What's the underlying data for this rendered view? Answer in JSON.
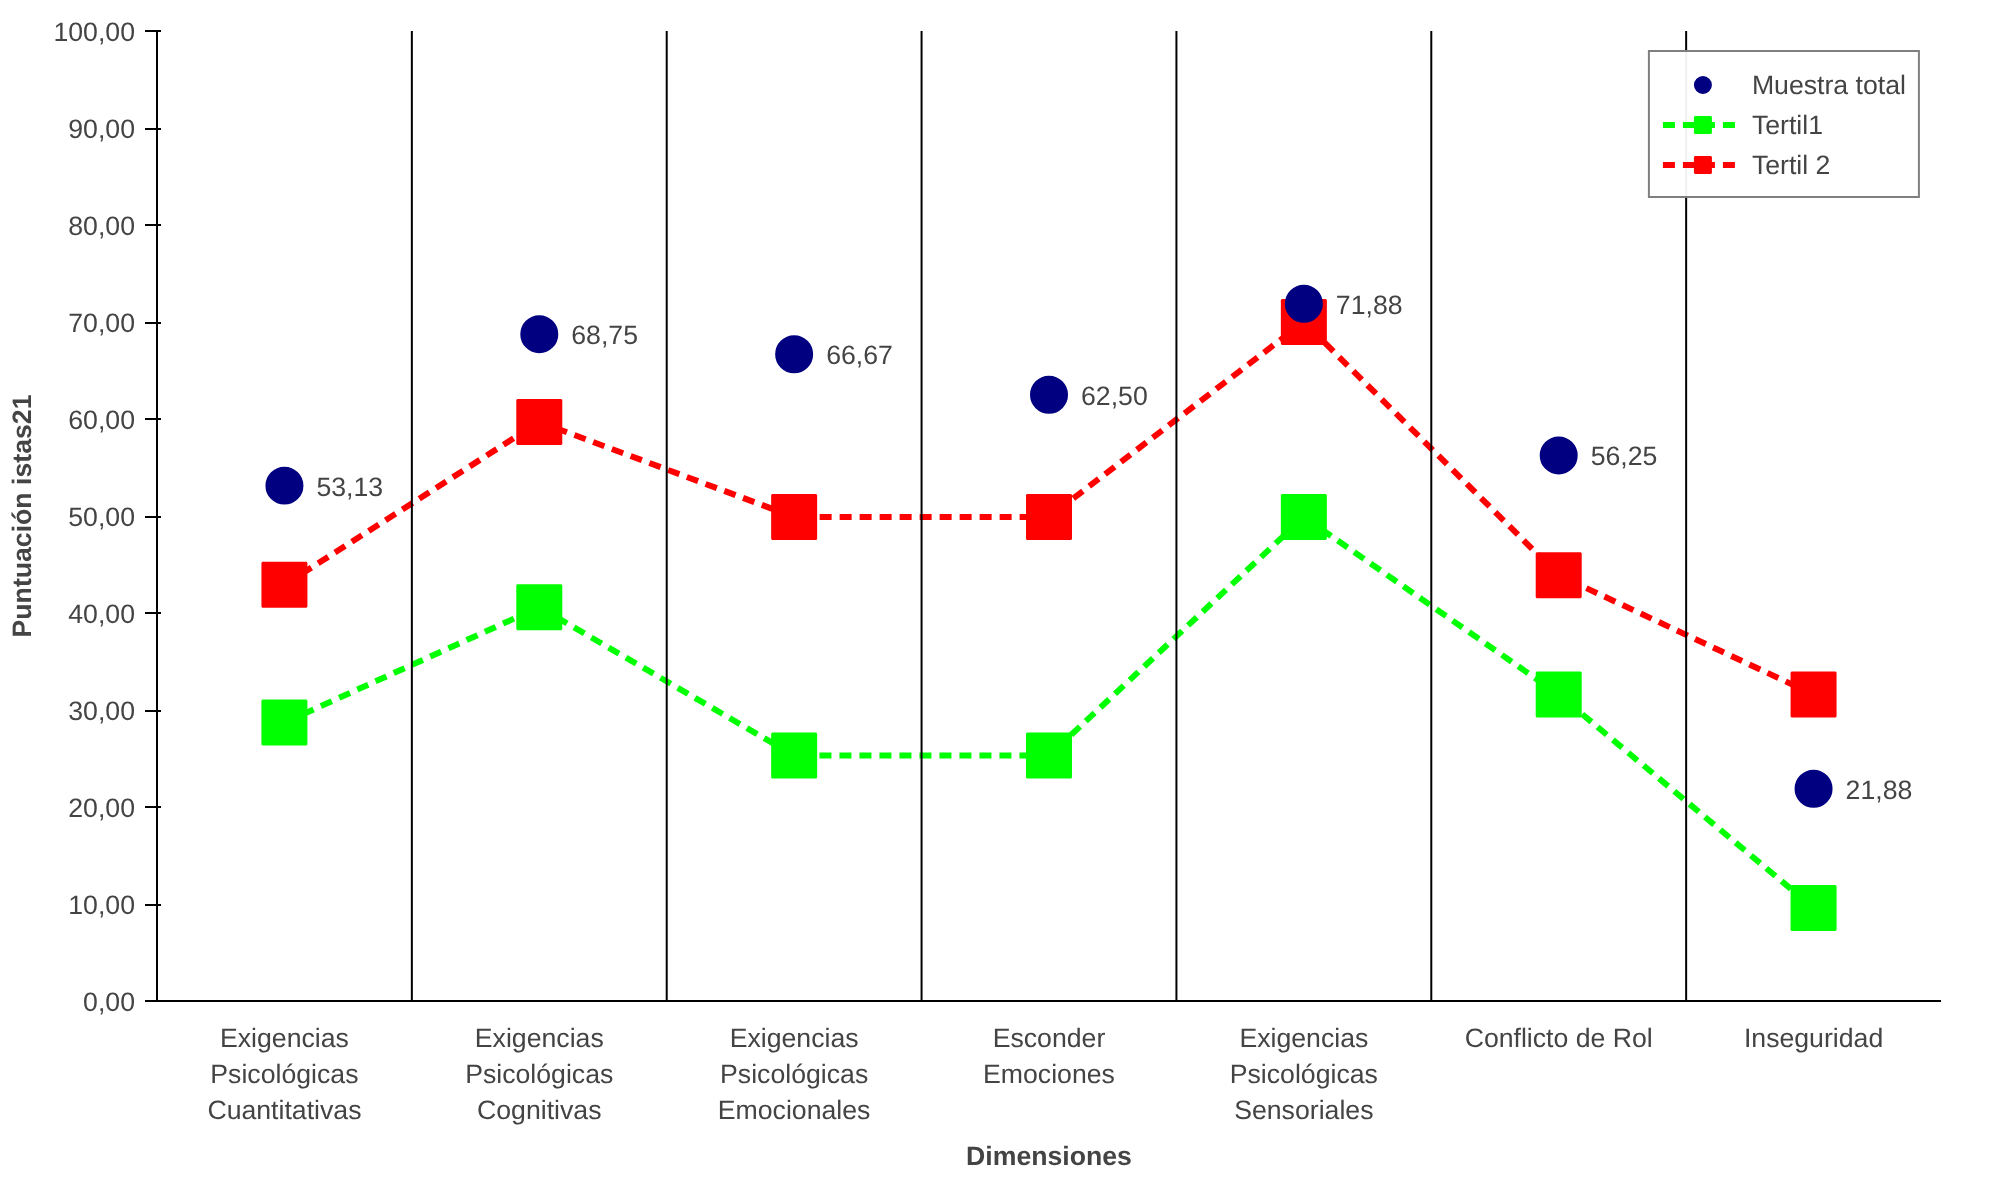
{
  "chart_data": {
    "type": "line",
    "xlabel": "Dimensiones",
    "ylabel": "Puntuación istas21",
    "categories": [
      "Exigencias\nPsicológicas\nCuantitativas",
      "Exigencias\nPsicológicas\nCognitivas",
      "Exigencias\nPsicológicas\nEmocionales",
      "Esconder\nEmociones",
      "Exigencias\nPsicológicas\nSensoriales",
      "Conflicto de Rol",
      "Inseguridad"
    ],
    "series": [
      {
        "name": "Muestra total",
        "type": "scatter",
        "marker": "circle",
        "color": "#000080",
        "values": [
          53.13,
          68.75,
          66.67,
          62.5,
          71.88,
          56.25,
          21.88
        ],
        "value_labels": [
          "53,13",
          "68,75",
          "66,67",
          "62,50",
          "71,88",
          "56,25",
          "21,88"
        ]
      },
      {
        "name": "Tertil1",
        "marker": "square",
        "line_style": "dashed",
        "color": "#00ff00",
        "values": [
          28.7,
          40.6,
          25.3,
          25.3,
          49.9,
          31.6,
          9.6
        ]
      },
      {
        "name": "Tertil 2",
        "marker": "square",
        "line_style": "dashed",
        "color": "#ff0000",
        "values": [
          42.9,
          59.7,
          49.9,
          49.9,
          70.0,
          43.9,
          31.6
        ]
      }
    ],
    "ylim": [
      0,
      100
    ],
    "yticks": [
      {
        "value": 0,
        "label": "0,00"
      },
      {
        "value": 10,
        "label": "10,00"
      },
      {
        "value": 20,
        "label": "20,00"
      },
      {
        "value": 30,
        "label": "30,00"
      },
      {
        "value": 40,
        "label": "40,00"
      },
      {
        "value": 50,
        "label": "50,00"
      },
      {
        "value": 60,
        "label": "60,00"
      },
      {
        "value": 70,
        "label": "70,00"
      },
      {
        "value": 80,
        "label": "80,00"
      },
      {
        "value": 90,
        "label": "90,00"
      },
      {
        "value": 100,
        "label": "100,00"
      }
    ],
    "grid": "x",
    "legend": "top right"
  }
}
